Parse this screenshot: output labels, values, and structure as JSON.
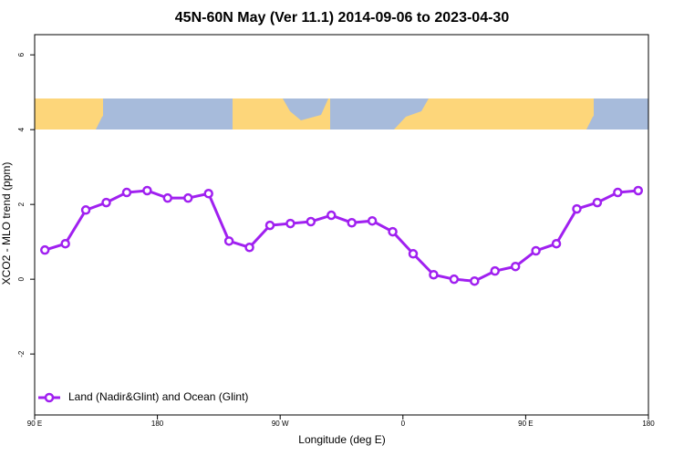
{
  "chart_data": {
    "type": "line",
    "title": "45N-60N May (Ver 11.1)   2014-09-06 to 2023-04-30",
    "x_label": "Longitude (deg E)",
    "y_label": "XCO2 - MLO trend (ppm)",
    "x": [
      97.5,
      112.5,
      127.5,
      142.5,
      157.5,
      172.5,
      187.5,
      202.5,
      217.5,
      232.5,
      247.5,
      262.5,
      277.5,
      292.5,
      307.5,
      322.5,
      337.5,
      352.5,
      367.5,
      382.5,
      397.5,
      412.5,
      427.5,
      442.5,
      457.5,
      472.5,
      487.5,
      502.5,
      517.5,
      532.5
    ],
    "series": [
      {
        "name": "Land (Nadir&Glint) and Ocean (Glint)",
        "color": "#a020f0",
        "values": [
          0.78,
          0.95,
          1.85,
          2.05,
          2.32,
          2.37,
          2.17,
          2.17,
          2.29,
          1.02,
          0.85,
          1.44,
          1.49,
          1.54,
          1.71,
          1.51,
          1.56,
          1.27,
          0.68,
          0.12,
          0.0,
          -0.05,
          0.22,
          0.34,
          0.76,
          0.95,
          1.88,
          2.05,
          2.32,
          2.37
        ]
      }
    ],
    "xlim": [
      90,
      540
    ],
    "xticks": [
      {
        "value": 90,
        "label": "90 E"
      },
      180,
      {
        "value": 270,
        "label": "90 W"
      },
      {
        "value": 360,
        "label": "0"
      },
      {
        "value": 450,
        "label": "90 E"
      },
      {
        "value": 540,
        "label": "180"
      }
    ],
    "ylim": [
      -3.63,
      6.54
    ],
    "yticks": [
      -2,
      0,
      2,
      4,
      6
    ],
    "legend": "bottom-left"
  }
}
